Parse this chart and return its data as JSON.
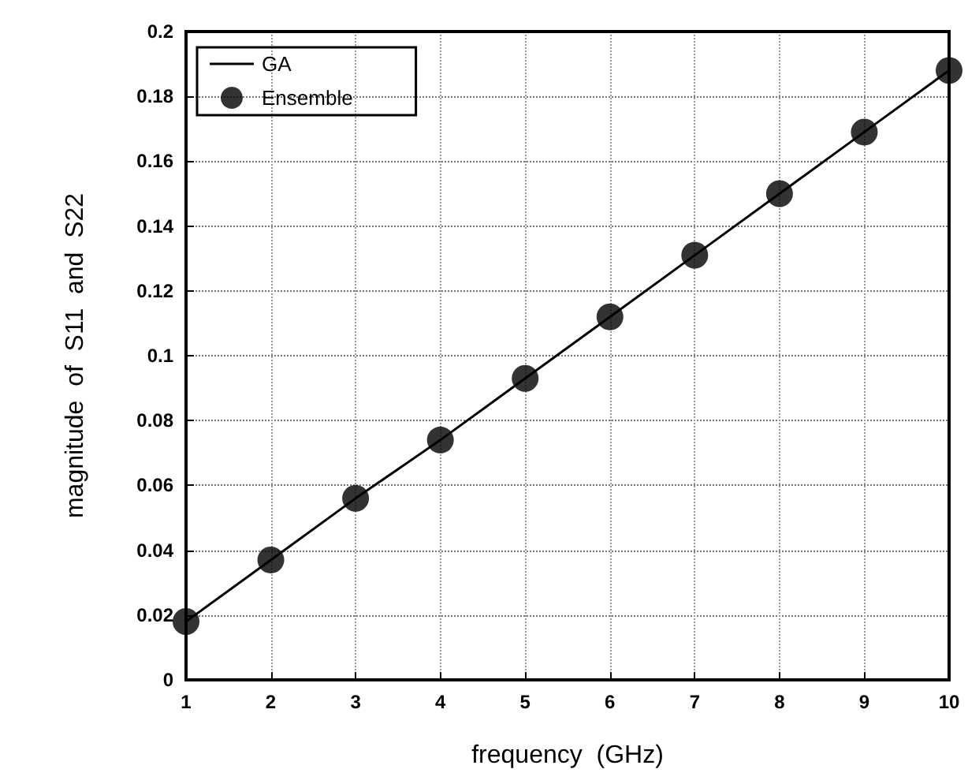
{
  "chart_data": {
    "type": "line",
    "xlabel": "frequency  (GHz)",
    "ylabel": "magnitude  of  S11  and  S22",
    "x": [
      1,
      2,
      3,
      4,
      5,
      6,
      7,
      8,
      9,
      10
    ],
    "series": [
      {
        "name": "GA",
        "color": "#000000",
        "marker": "none",
        "line_style": "solid",
        "values": [
          0.018,
          0.037,
          0.056,
          0.074,
          0.093,
          0.112,
          0.131,
          0.15,
          0.169,
          0.188
        ]
      },
      {
        "name": "Ensemble",
        "type": "scatter",
        "color": "#000000",
        "marker": "circle",
        "values": [
          0.018,
          0.037,
          0.056,
          0.074,
          0.093,
          0.112,
          0.131,
          0.15,
          0.169,
          0.188
        ]
      }
    ],
    "xlim": [
      1,
      10
    ],
    "xticks": [
      1,
      2,
      3,
      4,
      5,
      6,
      7,
      8,
      9,
      10
    ],
    "ylim": [
      0,
      0.2
    ],
    "yticks": [
      0,
      0.02,
      0.04,
      0.06,
      0.08,
      0.1,
      0.12,
      0.14,
      0.16,
      0.18,
      0.2
    ],
    "grid": true,
    "legend": "top left"
  }
}
